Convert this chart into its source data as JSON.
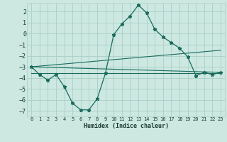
{
  "title": "",
  "xlabel": "Humidex (Indice chaleur)",
  "background_color": "#cce8e0",
  "grid_color": "#aacfc8",
  "line_color": "#1a6b5e",
  "xlim": [
    -0.5,
    23.5
  ],
  "ylim": [
    -7.5,
    2.8
  ],
  "yticks": [
    -7,
    -6,
    -5,
    -4,
    -3,
    -2,
    -1,
    0,
    1,
    2
  ],
  "xticks": [
    0,
    1,
    2,
    3,
    4,
    5,
    6,
    7,
    8,
    9,
    10,
    11,
    12,
    13,
    14,
    15,
    16,
    17,
    18,
    19,
    20,
    21,
    22,
    23
  ],
  "curve1_x": [
    0,
    1,
    2,
    3,
    4,
    5,
    6,
    7,
    8,
    9,
    10,
    11,
    12,
    13,
    14,
    15,
    16,
    17,
    18,
    19,
    20,
    21,
    22,
    23
  ],
  "curve1_y": [
    -3.0,
    -3.7,
    -4.2,
    -3.7,
    -4.8,
    -6.3,
    -6.9,
    -6.9,
    -5.9,
    -3.6,
    -0.1,
    0.9,
    1.6,
    2.6,
    1.9,
    0.4,
    -0.3,
    -0.8,
    -1.3,
    -2.1,
    -3.8,
    -3.5,
    -3.7,
    -3.5
  ],
  "line1_x": [
    0,
    23
  ],
  "line1_y": [
    -3.0,
    -3.5
  ],
  "line2_x": [
    0,
    23
  ],
  "line2_y": [
    -3.6,
    -3.6
  ],
  "line3_x": [
    0,
    23
  ],
  "line3_y": [
    -3.0,
    -1.5
  ]
}
